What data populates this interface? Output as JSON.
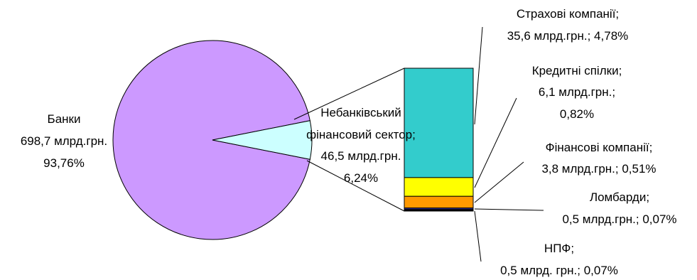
{
  "chart_data": {
    "type": "pie",
    "pie": {
      "slices": [
        {
          "name": "Банки",
          "value_text": "698,7 млрд.грн.",
          "percent_text": "93,76%",
          "value": 698.7,
          "percent": 93.76,
          "color": "#cc99ff"
        },
        {
          "name_line1": "Небанківський",
          "name_line2": "фінансовий сектор;",
          "value_text": "46,5 млрд.грн.",
          "percent_text": "6,24%",
          "value": 46.5,
          "percent": 6.24,
          "color": "#ccffff"
        }
      ]
    },
    "breakdown": {
      "type": "stacked-bar",
      "segments": [
        {
          "name": "Страхові компанії;",
          "line2": "35,6 млрд.грн.; 4,78%",
          "value": 35.6,
          "percent": 4.78,
          "color": "#33cccc"
        },
        {
          "name": "Кредитні спілки;",
          "line2": "6,1 млрд.грн.;",
          "line3": "0,82%",
          "value": 6.1,
          "percent": 0.82,
          "color": "#ffff00"
        },
        {
          "name": "Фінансові компанії;",
          "line2": "3,8 млрд.грн.; 0,51%",
          "value": 3.8,
          "percent": 0.51,
          "color": "#ff9900"
        },
        {
          "name": "Ломбарди;",
          "line2": "0,5 млрд.грн.; 0,07%",
          "value": 0.5,
          "percent": 0.07,
          "color": "#333399"
        },
        {
          "name": "НПФ;",
          "line2": "0,5 млрд. грн.; 0,07%",
          "value": 0.5,
          "percent": 0.07,
          "color": "#000000"
        }
      ]
    }
  }
}
